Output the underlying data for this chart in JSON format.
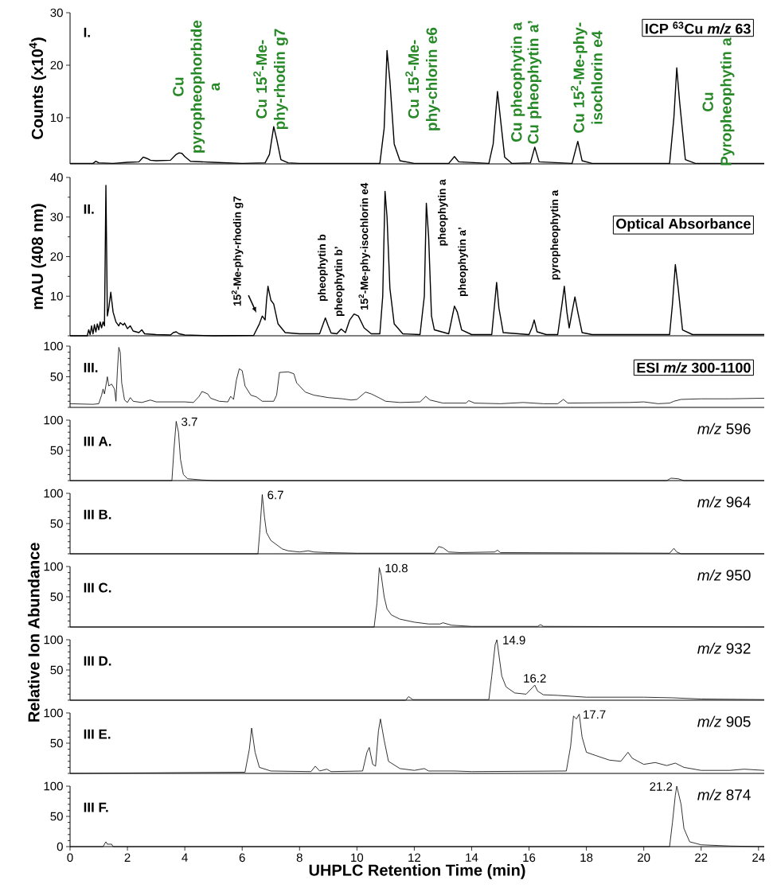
{
  "chart_data": [
    {
      "type": "line",
      "title": "I.",
      "subtitle": "ICP $^{63}$Cu *m/z* 63",
      "ylabel": "Counts (x10$^{4}$)",
      "color": "#000000",
      "xlim": [
        0,
        24.2
      ],
      "ylim": [
        1.2,
        30
      ],
      "yticks": [
        10,
        20,
        30
      ],
      "tick_labels": "y",
      "x": [
        0,
        0.8,
        0.9,
        1.0,
        1.5,
        2.0,
        2.4,
        2.55,
        2.65,
        2.7,
        2.8,
        3.0,
        3.5,
        3.7,
        3.8,
        3.9,
        4.0,
        4.2,
        5.0,
        6.0,
        6.8,
        6.95,
        7.1,
        7.2,
        7.35,
        7.6,
        8.0,
        10.0,
        10.8,
        10.95,
        11.05,
        11.15,
        11.3,
        11.5,
        12.0,
        13.2,
        13.4,
        13.55,
        14.6,
        14.75,
        14.9,
        15.0,
        15.15,
        15.4,
        16.05,
        16.2,
        16.35,
        17.5,
        17.7,
        17.85,
        18.2,
        20.9,
        21.05,
        21.15,
        21.25,
        21.45,
        21.8,
        24.2
      ],
      "values": [
        1.3,
        1.3,
        1.7,
        1.4,
        1.3,
        1.5,
        1.6,
        2.5,
        2.3,
        2.2,
        1.9,
        1.8,
        1.9,
        3.0,
        3.3,
        3.2,
        2.6,
        1.7,
        1.5,
        1.3,
        1.4,
        3,
        8.3,
        6,
        2,
        1.4,
        1.3,
        1.3,
        1.3,
        8,
        22.8,
        17,
        5,
        1.8,
        1.3,
        1.3,
        2.6,
        1.6,
        1.3,
        5,
        15,
        10,
        2.5,
        1.3,
        1.4,
        4.4,
        1.6,
        1.3,
        5.5,
        1.8,
        1.3,
        1.3,
        10,
        19.5,
        13,
        2,
        1.3,
        1.3
      ],
      "annotations": [
        "Cu pyropheophorbide a",
        "Cu 15$^{2}$-Me-phy-rhodin g7",
        "Cu 15$^{2}$-Me-phy-chlorin e6",
        "Cu pheophytin a",
        "Cu pheophytin a’",
        "Cu 15$^{2}$-Me-phy-isochlorin e4",
        "Cu Pyropheophytin a"
      ]
    },
    {
      "type": "line",
      "title": "II.",
      "subtitle": "Optical Absorbance",
      "ylabel": "mAU (408 nm)",
      "color": "#000000",
      "xlim": [
        0,
        24.2
      ],
      "ylim": [
        0,
        40
      ],
      "yticks": [
        10,
        20,
        30,
        40
      ],
      "tick_labels": "y",
      "x": [
        0,
        0.6,
        0.65,
        0.7,
        0.75,
        0.8,
        0.85,
        0.9,
        0.95,
        1.0,
        1.05,
        1.1,
        1.15,
        1.2,
        1.25,
        1.3,
        1.35,
        1.42,
        1.5,
        1.6,
        1.7,
        1.75,
        1.85,
        1.9,
        2.0,
        2.1,
        2.2,
        2.4,
        2.5,
        2.6,
        3.0,
        3.5,
        3.6,
        3.7,
        3.8,
        4.0,
        5,
        6.4,
        6.6,
        6.7,
        6.8,
        6.85,
        6.9,
        7.0,
        7.1,
        7.25,
        7.5,
        8.0,
        8.7,
        8.8,
        8.9,
        9.0,
        9.1,
        9.3,
        9.45,
        9.6,
        9.75,
        9.9,
        10.05,
        10.25,
        10.5,
        10.8,
        10.9,
        10.98,
        11.05,
        11.15,
        11.3,
        11.6,
        12.2,
        12.35,
        12.42,
        12.5,
        12.6,
        12.7,
        13.2,
        13.3,
        13.4,
        13.5,
        13.65,
        14.0,
        14.7,
        14.8,
        14.87,
        14.95,
        15.1,
        16.0,
        16.1,
        16.18,
        16.28,
        16.6,
        17.0,
        17.15,
        17.23,
        17.32,
        17.4,
        17.5,
        17.6,
        17.7,
        17.85,
        18.2,
        20.9,
        21.0,
        21.1,
        21.2,
        21.35,
        21.7,
        24.2
      ],
      "values": [
        0,
        0,
        1.5,
        0.3,
        2.5,
        0.5,
        2.8,
        1,
        3,
        1.5,
        3.5,
        2,
        3.5,
        2.5,
        38,
        5,
        7,
        11,
        6,
        3.5,
        2.5,
        3.3,
        2.7,
        3.2,
        1.8,
        2.5,
        1.2,
        0.8,
        1.5,
        0.5,
        0.3,
        0.2,
        0.8,
        1.0,
        0.5,
        0.2,
        0,
        0.1,
        3,
        5,
        4,
        9,
        12.5,
        9,
        8,
        3,
        0.8,
        0.5,
        0.5,
        2.5,
        4.5,
        2.5,
        0.7,
        0.5,
        1.7,
        0.8,
        4,
        5.5,
        5,
        2,
        0.5,
        0.5,
        10,
        36.5,
        30,
        12,
        3,
        0.5,
        0.3,
        10,
        33.5,
        25,
        5,
        1.5,
        0.5,
        4,
        7.5,
        6,
        1.5,
        0.3,
        0.3,
        8,
        13.5,
        7,
        0.8,
        0.3,
        2,
        4,
        1,
        0.3,
        0.3,
        8,
        12.5,
        6,
        2,
        6,
        9.8,
        6,
        0.8,
        0.3,
        0.3,
        8,
        18,
        12,
        1.5,
        0.3,
        0.3
      ],
      "annotations": [
        "15$^{2}$-Me-phy-rhodin g7",
        "pheophytin b",
        "pheophytin  b’",
        "15$^{2}$-Me-phy-isochlorin e4",
        "pheophytin a",
        "pheophytin a’",
        "pyropheophytin a"
      ]
    },
    {
      "type": "line",
      "title": "III.",
      "subtitle": "ESI *m/z* 300-1100",
      "color": "#000000",
      "xlim": [
        0,
        24.2
      ],
      "ylim": [
        0,
        100
      ],
      "yticks": [
        50,
        100
      ],
      "tick_labels": "y",
      "x": [
        0,
        0.8,
        1.0,
        1.1,
        1.15,
        1.2,
        1.3,
        1.35,
        1.45,
        1.55,
        1.6,
        1.65,
        1.7,
        1.75,
        1.8,
        1.9,
        2.0,
        2.1,
        2.2,
        2.5,
        2.8,
        3.0,
        4.0,
        4.3,
        4.5,
        4.6,
        4.8,
        4.9,
        5.2,
        5.5,
        5.6,
        5.7,
        5.8,
        5.9,
        6.0,
        6.1,
        6.3,
        6.5,
        6.7,
        7.1,
        7.2,
        7.3,
        7.6,
        7.8,
        7.9,
        8.2,
        8.5,
        9.0,
        9.5,
        9.8,
        10.0,
        10.3,
        10.5,
        10.8,
        11.0,
        11.5,
        12.2,
        12.4,
        12.55,
        13,
        13.8,
        13.9,
        14.1,
        15,
        15.8,
        16.5,
        17,
        17.2,
        17.35,
        19.5,
        20.0,
        20.5,
        20.9,
        21.05,
        21.3,
        22,
        23,
        24.2
      ],
      "values": [
        6,
        5,
        6,
        20,
        30,
        22,
        50,
        35,
        38,
        30,
        10,
        60,
        98,
        90,
        40,
        12,
        8,
        16,
        10,
        8,
        12,
        9,
        9,
        8,
        18,
        26,
        22,
        15,
        10,
        9,
        18,
        13,
        45,
        63,
        60,
        35,
        20,
        17,
        10,
        10,
        20,
        57,
        58,
        55,
        40,
        25,
        20,
        16,
        14,
        12,
        13,
        25,
        22,
        15,
        10,
        8,
        9,
        18,
        12,
        7,
        7,
        11,
        7,
        6,
        8,
        6,
        6,
        13,
        7,
        8,
        9,
        6,
        7,
        10,
        13,
        14,
        14,
        15
      ]
    },
    {
      "type": "line",
      "title": "III A.",
      "subtitle": "*m/z* 596",
      "color": "#000000",
      "xlim": [
        0,
        24.2
      ],
      "ylim": [
        0,
        100
      ],
      "yticks": [
        50,
        100
      ],
      "tick_labels": "y",
      "x": [
        0,
        3.55,
        3.62,
        3.7,
        3.78,
        3.85,
        3.95,
        4.1,
        4.6,
        5,
        20.8,
        20.95,
        21.2,
        21.4,
        24.2
      ],
      "values": [
        0,
        0,
        50,
        98,
        80,
        35,
        10,
        3,
        1,
        0,
        0,
        4,
        3,
        0,
        0
      ],
      "annotations": [
        {
          "text": "3.7",
          "x": 3.7,
          "y": 98
        }
      ]
    },
    {
      "type": "line",
      "title": "III B.",
      "subtitle": "*m/z* 964",
      "color": "#000000",
      "xlim": [
        0,
        24.2
      ],
      "ylim": [
        0,
        100
      ],
      "yticks": [
        50,
        100
      ],
      "tick_labels": "y",
      "x": [
        0,
        6.55,
        6.62,
        6.7,
        6.78,
        6.85,
        7.0,
        7.2,
        7.4,
        7.6,
        8.0,
        8.3,
        8.5,
        9.0,
        10,
        12.7,
        12.85,
        13.0,
        13.2,
        13.6,
        14.8,
        14.9,
        15.0,
        20.9,
        21.05,
        21.15,
        21.3,
        24.2
      ],
      "values": [
        0,
        0,
        40,
        98,
        60,
        35,
        22,
        15,
        8,
        5,
        3,
        5,
        3,
        2,
        1,
        1,
        12,
        10,
        3,
        2,
        3,
        6,
        2,
        1,
        9,
        3,
        0,
        0
      ],
      "annotations": [
        {
          "text": "6.7",
          "x": 6.7,
          "y": 98
        }
      ]
    },
    {
      "type": "line",
      "title": "III C.",
      "subtitle": "*m/z* 950",
      "ylabel": "Relative Ion Abundance",
      "color": "#000000",
      "xlim": [
        0,
        24.2
      ],
      "ylim": [
        0,
        100
      ],
      "yticks": [
        50,
        100
      ],
      "tick_labels": "y",
      "x": [
        0,
        10.6,
        10.7,
        10.78,
        10.85,
        10.95,
        11.05,
        11.2,
        11.5,
        12.0,
        12.5,
        12.9,
        13.0,
        13.3,
        14,
        16.3,
        16.4,
        16.5,
        24.2
      ],
      "values": [
        0,
        0,
        40,
        98,
        85,
        50,
        30,
        20,
        13,
        8,
        5,
        5,
        7,
        3,
        1,
        1,
        4,
        1,
        0
      ],
      "annotations": [
        {
          "text": "10.8",
          "x": 10.8,
          "y": 98
        }
      ]
    },
    {
      "type": "line",
      "title": "III D.",
      "subtitle": "*m/z* 932",
      "color": "#000000",
      "xlim": [
        0,
        24.2
      ],
      "ylim": [
        0,
        100
      ],
      "yticks": [
        50,
        100
      ],
      "tick_labels": "y",
      "x": [
        0,
        11.7,
        11.8,
        11.95,
        14.6,
        14.7,
        14.82,
        14.88,
        14.95,
        15.05,
        15.2,
        15.5,
        15.9,
        16.1,
        16.2,
        16.3,
        16.5,
        17,
        18,
        20,
        21,
        22,
        24.2
      ],
      "values": [
        0,
        0,
        6,
        1,
        1,
        40,
        92,
        100,
        75,
        40,
        22,
        12,
        10,
        20,
        25,
        15,
        9,
        8,
        5,
        5,
        4,
        2,
        1
      ],
      "annotations": [
        {
          "text": "14.9",
          "x": 14.9,
          "y": 100
        },
        {
          "text": "16.2",
          "x": 16.2,
          "y": 25
        }
      ]
    },
    {
      "type": "line",
      "title": "III E.",
      "subtitle": "*m/z* 905",
      "color": "#000000",
      "xlim": [
        0,
        24.2
      ],
      "ylim": [
        0,
        100
      ],
      "yticks": [
        50,
        100
      ],
      "tick_labels": "y",
      "x": [
        0,
        3,
        6.1,
        6.25,
        6.33,
        6.45,
        6.6,
        7,
        8.4,
        8.55,
        8.7,
        8.95,
        9.1,
        10.2,
        10.35,
        10.43,
        10.55,
        10.65,
        10.75,
        10.82,
        10.95,
        11.1,
        11.5,
        12.0,
        12.35,
        12.5,
        13.4,
        14,
        17.3,
        17.45,
        17.55,
        17.65,
        17.75,
        17.85,
        18.0,
        18.3,
        18.8,
        19.2,
        19.45,
        19.6,
        20,
        20.4,
        20.8,
        21.1,
        21.4,
        22,
        23,
        23.5,
        24.2
      ],
      "values": [
        0,
        1,
        2,
        40,
        75,
        35,
        10,
        4,
        3,
        12,
        4,
        7,
        3,
        4,
        35,
        43,
        15,
        12,
        70,
        90,
        55,
        20,
        8,
        5,
        8,
        4,
        4,
        3,
        4,
        45,
        95,
        90,
        98,
        60,
        35,
        30,
        22,
        20,
        35,
        25,
        15,
        18,
        13,
        17,
        10,
        5,
        5,
        7,
        5
      ],
      "annotations": [
        {
          "text": "17.7",
          "x": 17.7,
          "y": 98
        }
      ]
    },
    {
      "type": "line",
      "title": "III F.",
      "subtitle": "*m/z* 874",
      "xlabel": "UHPLC Retention Time (min)",
      "color": "#000000",
      "xlim": [
        0,
        24.2
      ],
      "ylim": [
        0,
        100
      ],
      "yticks": [
        0,
        50,
        100
      ],
      "xticks": [
        0,
        2,
        4,
        6,
        8,
        10,
        12,
        14,
        16,
        18,
        20,
        22,
        24
      ],
      "x": [
        0,
        1.15,
        1.25,
        1.3,
        1.45,
        1.5,
        20.9,
        21.0,
        21.1,
        21.15,
        21.3,
        21.4,
        21.6,
        22,
        23,
        24.2
      ],
      "values": [
        0,
        0,
        8,
        4,
        4,
        0,
        0,
        40,
        85,
        100,
        70,
        30,
        8,
        3,
        1,
        0
      ],
      "annotations": [
        {
          "text": "21.2",
          "x": 21.15,
          "y": 100
        }
      ]
    }
  ]
}
